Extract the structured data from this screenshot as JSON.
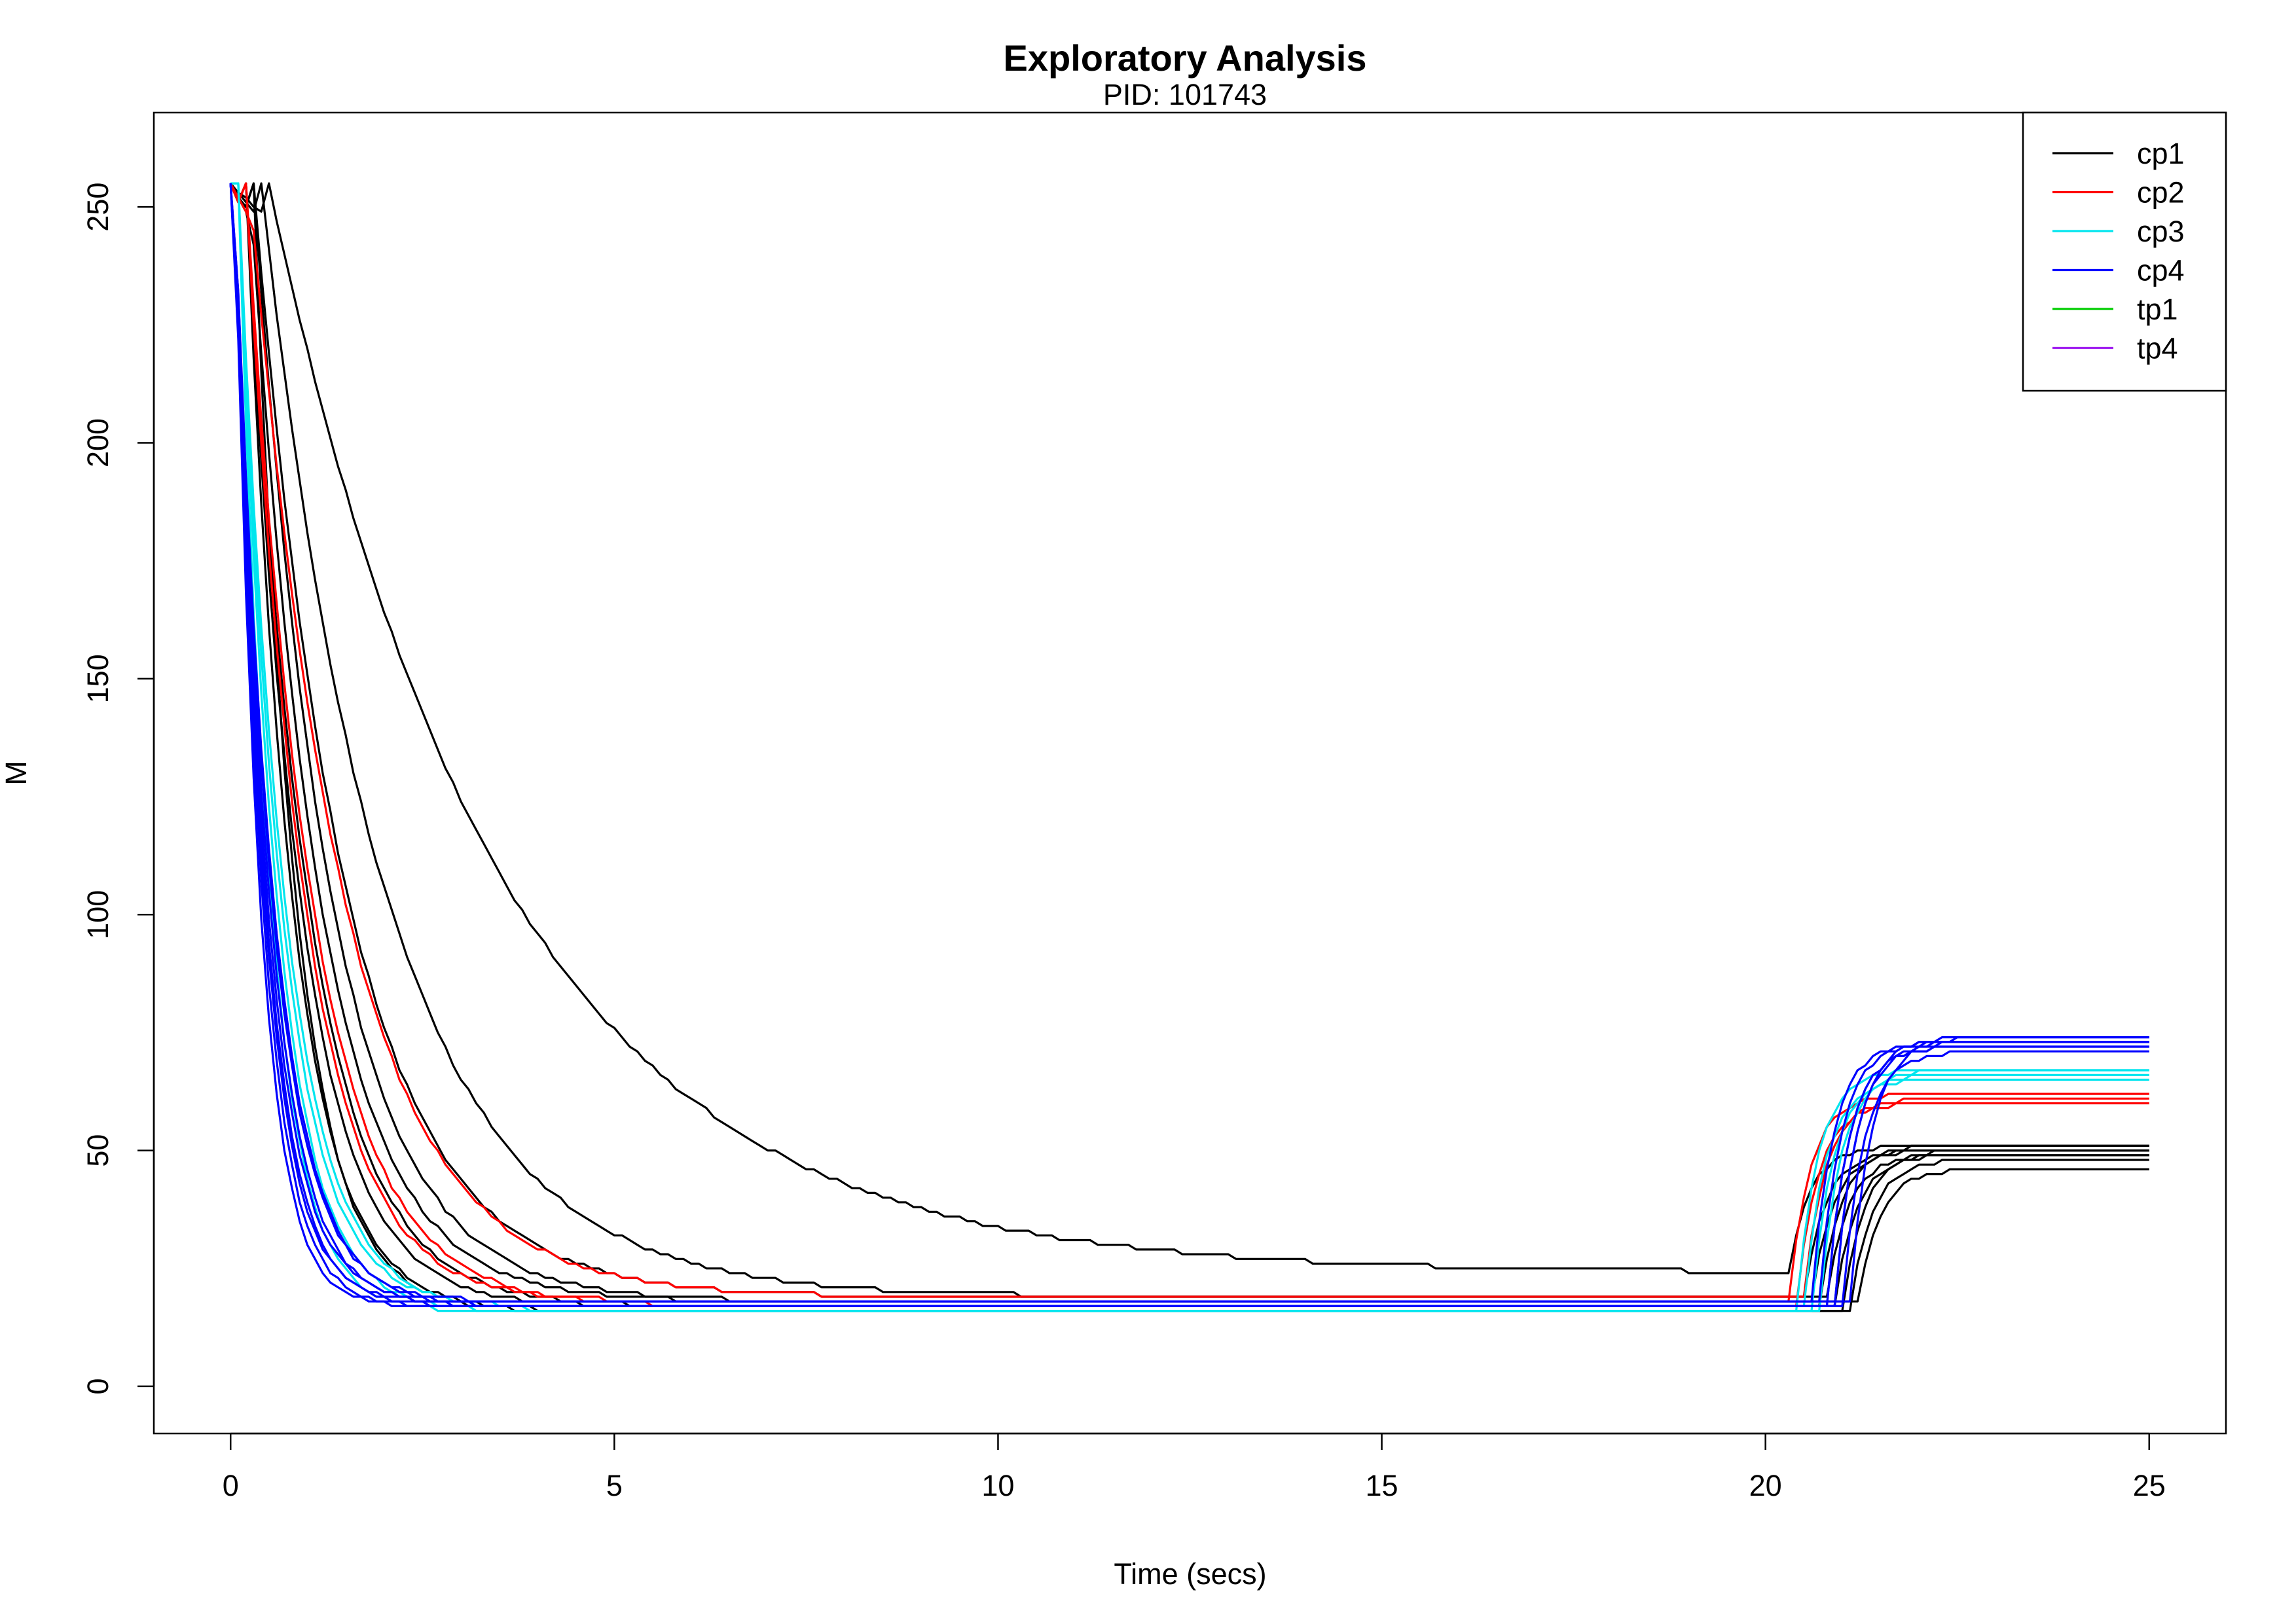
{
  "chart_data": {
    "type": "line",
    "title": "Exploratory Analysis",
    "subtitle": "PID:  101743",
    "xlabel": "Time (secs)",
    "ylabel": "M",
    "xlim": [
      -1,
      26
    ],
    "ylim": [
      -10,
      270
    ],
    "xticks": [
      0,
      5,
      10,
      15,
      20,
      25
    ],
    "yticks": [
      0,
      50,
      100,
      150,
      200,
      250
    ],
    "grid": false,
    "legend_position": "top-right",
    "legend": [
      {
        "name": "cp1",
        "color": "#000000"
      },
      {
        "name": "cp2",
        "color": "#ff0000"
      },
      {
        "name": "cp3",
        "color": "#00e5ee"
      },
      {
        "name": "cp4",
        "color": "#0000ff"
      },
      {
        "name": "tp1",
        "color": "#00cd00"
      },
      {
        "name": "tp4",
        "color": "#a020f0"
      }
    ],
    "series_groups": [
      {
        "color": "#000000",
        "curves": [
          {
            "plateau": 16,
            "tau": 0.55,
            "delay": 0.3,
            "rise": 21.0,
            "final": 50
          },
          {
            "plateau": 16,
            "tau": 0.6,
            "delay": 0.2,
            "rise": 21.1,
            "final": 48
          },
          {
            "plateau": 17,
            "tau": 0.7,
            "delay": 0.2,
            "rise": 20.9,
            "final": 49
          },
          {
            "plateau": 17,
            "tau": 0.8,
            "delay": 0.2,
            "rise": 20.7,
            "final": 51
          },
          {
            "plateau": 18,
            "tau": 0.9,
            "delay": 0.25,
            "rise": 21.2,
            "final": 46
          },
          {
            "plateau": 18,
            "tau": 1.0,
            "delay": 0.3,
            "rise": 20.6,
            "final": 50
          },
          {
            "plateau": 19,
            "tau": 1.2,
            "delay": 0.3,
            "rise": 20.8,
            "final": 49
          },
          {
            "plateau": 19,
            "tau": 1.6,
            "delay": 0.4,
            "rise": 20.5,
            "final": 50
          },
          {
            "plateau": 24,
            "tau": 3.0,
            "delay": 0.5,
            "rise": 20.3,
            "final": 51
          }
        ]
      },
      {
        "color": "#ff0000",
        "curves": [
          {
            "plateau": 18,
            "tau": 0.75,
            "delay": 0.2,
            "rise": 20.3,
            "final": 62
          },
          {
            "plateau": 17,
            "tau": 0.85,
            "delay": 0.2,
            "rise": 20.4,
            "final": 60
          },
          {
            "plateau": 19,
            "tau": 1.2,
            "delay": 0.25,
            "rise": 20.5,
            "final": 61
          }
        ]
      },
      {
        "color": "#00e5ee",
        "curves": [
          {
            "plateau": 16,
            "tau": 0.42,
            "delay": 0.1,
            "rise": 20.4,
            "final": 67
          },
          {
            "plateau": 16,
            "tau": 0.5,
            "delay": 0.1,
            "rise": 20.6,
            "final": 66
          },
          {
            "plateau": 17,
            "tau": 0.55,
            "delay": 0.1,
            "rise": 20.5,
            "final": 65
          },
          {
            "plateau": 16,
            "tau": 0.6,
            "delay": 0.1,
            "rise": 20.7,
            "final": 67
          }
        ]
      },
      {
        "color": "#0000ff",
        "curves": [
          {
            "plateau": 17,
            "tau": 0.33,
            "delay": 0.05,
            "rise": 20.8,
            "final": 72
          },
          {
            "plateau": 17,
            "tau": 0.36,
            "delay": 0.05,
            "rise": 20.9,
            "final": 74
          },
          {
            "plateau": 18,
            "tau": 0.38,
            "delay": 0.05,
            "rise": 20.7,
            "final": 73
          },
          {
            "plateau": 17,
            "tau": 0.4,
            "delay": 0.05,
            "rise": 21.0,
            "final": 71
          },
          {
            "plateau": 18,
            "tau": 0.42,
            "delay": 0.05,
            "rise": 20.6,
            "final": 73
          },
          {
            "plateau": 17,
            "tau": 0.45,
            "delay": 0.05,
            "rise": 20.8,
            "final": 72
          },
          {
            "plateau": 18,
            "tau": 0.48,
            "delay": 0.05,
            "rise": 21.1,
            "final": 74
          },
          {
            "plateau": 17,
            "tau": 0.5,
            "delay": 0.05,
            "rise": 20.9,
            "final": 73
          }
        ]
      }
    ],
    "start_value": 255
  }
}
